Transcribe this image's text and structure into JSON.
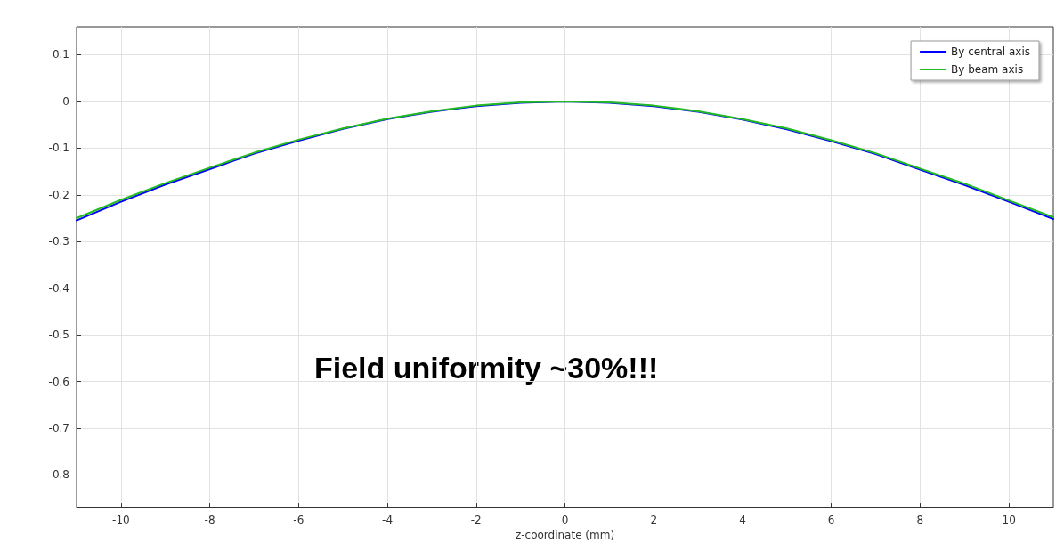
{
  "chart_data": {
    "type": "line",
    "xlabel": "z-coordinate (mm)",
    "x": [
      -11,
      -10,
      -9,
      -8,
      -7,
      -6,
      -5,
      -4,
      -3,
      -2,
      -1,
      0,
      1,
      2,
      3,
      4,
      5,
      6,
      7,
      8,
      9,
      10,
      11
    ],
    "series": [
      {
        "name": "By central axis",
        "color": "#0000ff",
        "values": [
          -0.255,
          -0.215,
          -0.178,
          -0.145,
          -0.112,
          -0.084,
          -0.059,
          -0.038,
          -0.022,
          -0.01,
          -0.003,
          0,
          -0.003,
          -0.01,
          -0.022,
          -0.039,
          -0.06,
          -0.085,
          -0.113,
          -0.146,
          -0.179,
          -0.215,
          -0.252
        ]
      },
      {
        "name": "By beam axis",
        "color": "#22bb22",
        "values": [
          -0.25,
          -0.211,
          -0.175,
          -0.142,
          -0.11,
          -0.082,
          -0.058,
          -0.037,
          -0.021,
          -0.009,
          -0.002,
          0,
          -0.002,
          -0.009,
          -0.021,
          -0.038,
          -0.058,
          -0.083,
          -0.111,
          -0.144,
          -0.176,
          -0.212,
          -0.248
        ]
      }
    ],
    "xlim": [
      -11,
      11
    ],
    "xticks": [
      -10,
      -8,
      -6,
      -4,
      -2,
      0,
      2,
      4,
      6,
      8,
      10
    ],
    "ylim": [
      -0.87,
      0.16
    ],
    "yticks": [
      -0.8,
      -0.7,
      -0.6,
      -0.5,
      -0.4,
      -0.3,
      -0.2,
      -0.1,
      0,
      0.1
    ],
    "annotations": [
      "Field uniformity ~30%!!!"
    ],
    "grid": true,
    "legend": "top right",
    "marker": "none",
    "line_style": "solid"
  }
}
